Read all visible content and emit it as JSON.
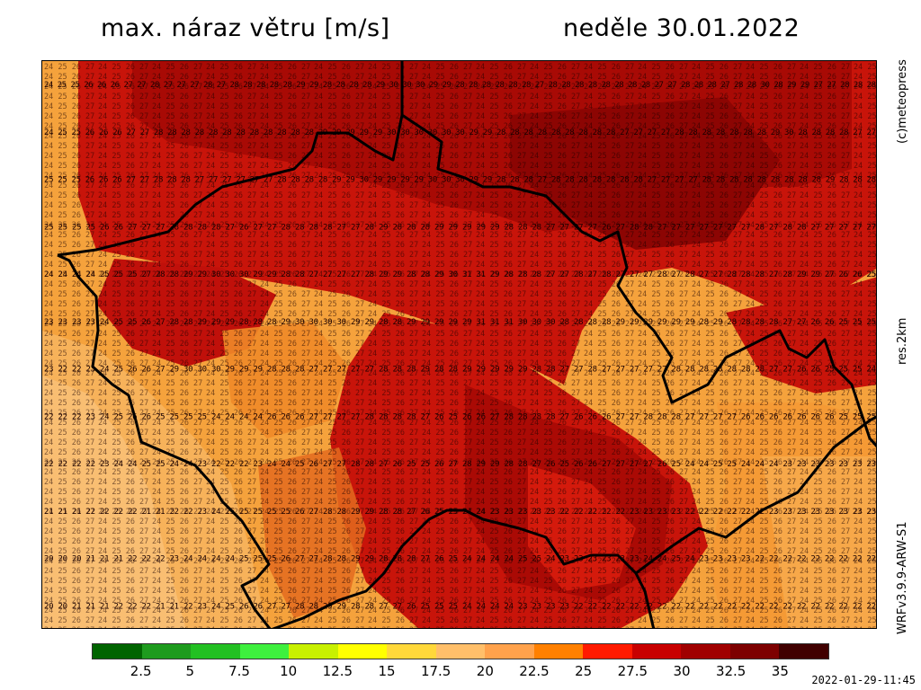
{
  "header": {
    "title": "max. náraz větru [m/s]",
    "date": "neděle 30.01.2022"
  },
  "side_labels": {
    "copyright": "(c)meteopress",
    "resolution": "res.2km",
    "model": "WRFv3.9.9-ARW-S1"
  },
  "legend": {
    "colors": [
      "#006400",
      "#1e9b1e",
      "#22c022",
      "#3ef03e",
      "#c8f000",
      "#ffff00",
      "#ffd83a",
      "#ffbf6a",
      "#ffa24c",
      "#ff8000",
      "#ff1a00",
      "#c80000",
      "#a00000",
      "#7d0000",
      "#400000"
    ],
    "labels": [
      "2.5",
      "5",
      "7.5",
      "10",
      "12.5",
      "15",
      "17.5",
      "20",
      "22.5",
      "25",
      "27.5",
      "30",
      "32.5",
      "35"
    ]
  },
  "run_time": "2022-01-29-11:45",
  "map": {
    "grid_sample_rows": [
      "24 25 25 26 26 26 27 27 28 27 27 27 28 27 28 28 28 28 28 29 29 28 28 28 28 29 30 30 30 29 29 28 28 28 28 28 28 27 28 28 28 28 28 28 28 28 27 27 28 28 28 27 28 28 30 28 29 29 27 27 28 28 28",
      "24 25 25 26 26 26 27 27 28 28 28 28 28 28 28 28 28 28 28 28 29 29 29 29 29 30 30 30 30 30 30 29 29 28 28 28 28 28 28 28 28 28 27 27 27 27 28 28 28 28 28 28 28 29 30 28 28 28 28 27 27",
      "25 25 25 26 26 26 27 27 28 28 28 27 27 27 27 27 27 28 28 28 28 29 29 30 29 29 29 29 30 30 30 29 29 28 28 28 27 28 28 28 28 28 28 28 27 27 27 27 28 28 28 28 28 28 28 28 28 29 28 28 28",
      "25 25 25 25 26 26 27 27 27 28 28 28 28 27 26 27 27 28 28 28 28 27 27 28 29 28 28 28 29 29 29 29 29 28 28 28 27 27 27 27 26 27 28 28 27 27 27 27 27 27 27 28 27 28 28 27 27 27 27 27",
      "24 24 24 24 25 25 25 27 28 28 29 29 30 30 30 29 29 28 28 27 27 27 27 28 29 29 28 28 29 30 31 31 29 28 28 28 27 27 28 27 28 27 27 27 28 27 28 27 27 28 28 28 27 28 29 29 27 26 26 25",
      "23 23 23 23 24 25 25 26 27 28 28 29 29 29 28 28 28 29 30 30 30 30 29 29 28 28 29 29 29 29 29 31 31 31 30 30 30 28 28 28 28 29 29 29 29 29 29 28 29 28 28 28 28 27 27 26 26 25 25 25",
      "23 22 22 23 24 25 26 26 27 29 30 30 30 29 29 29 28 28 28 27 27 27 27 27 28 28 28 29 28 28 29 29 29 29 29 28 28 27 27 28 27 27 27 27 27 28 28 28 28 28 28 28 27 27 26 26 25 25 25 24",
      "22 22 22 23 24 25 26 26 25 25 25 25 24 24 24 24 26 26 26 27 27 27 27 28 28 28 28 27 26 25 26 26 27 28 28 28 28 27 26 26 26 27 27 28 28 28 27 27 27 27 26 26 26 26 26 26 26 25 25 25",
      "22 22 22 22 23 24 24 25 25 24 24 23 22 22 22 23 24 24 25 26 27 27 28 28 27 26 25 25 26 27 28 29 29 28 28 27 26 25 26 26 27 27 27 27 26 25 24 24 25 25 24 24 24 23 23 23 23 23 23 23",
      "21 21 21 22 22 22 22 21 21 22 22 23 24 25 25 25 25 25 26 27 28 28 29 29 28 28 27 26 25 25 24 24 23 23 23 23 23 22 22 22 22 22 23 23 23 23 22 22 22 22 22 22 23 23 23 23 23 23 23 23",
      "20 20 20 21 21 21 22 22 22 23 24 24 24 24 25 25 25 26 27 27 28 28 29 29 28 28 28 27 26 25 24 24 24 24 25 25 24 23 23 23 23 23 23 24 24 25 24 23 23 23 23 22 22 22 22 22 22 22 22 22",
      "20 20 21 21 21 22 22 22 21 21 22 23 24 25 26 26 27 27 28 28 29 29 28 28 27 27 26 25 25 25 24 24 24 24 23 23 23 23 22 22 22 22 22 22 22 22 22 22 22 22 22 22 22 22 22 22 22 22 22 22"
    ]
  }
}
